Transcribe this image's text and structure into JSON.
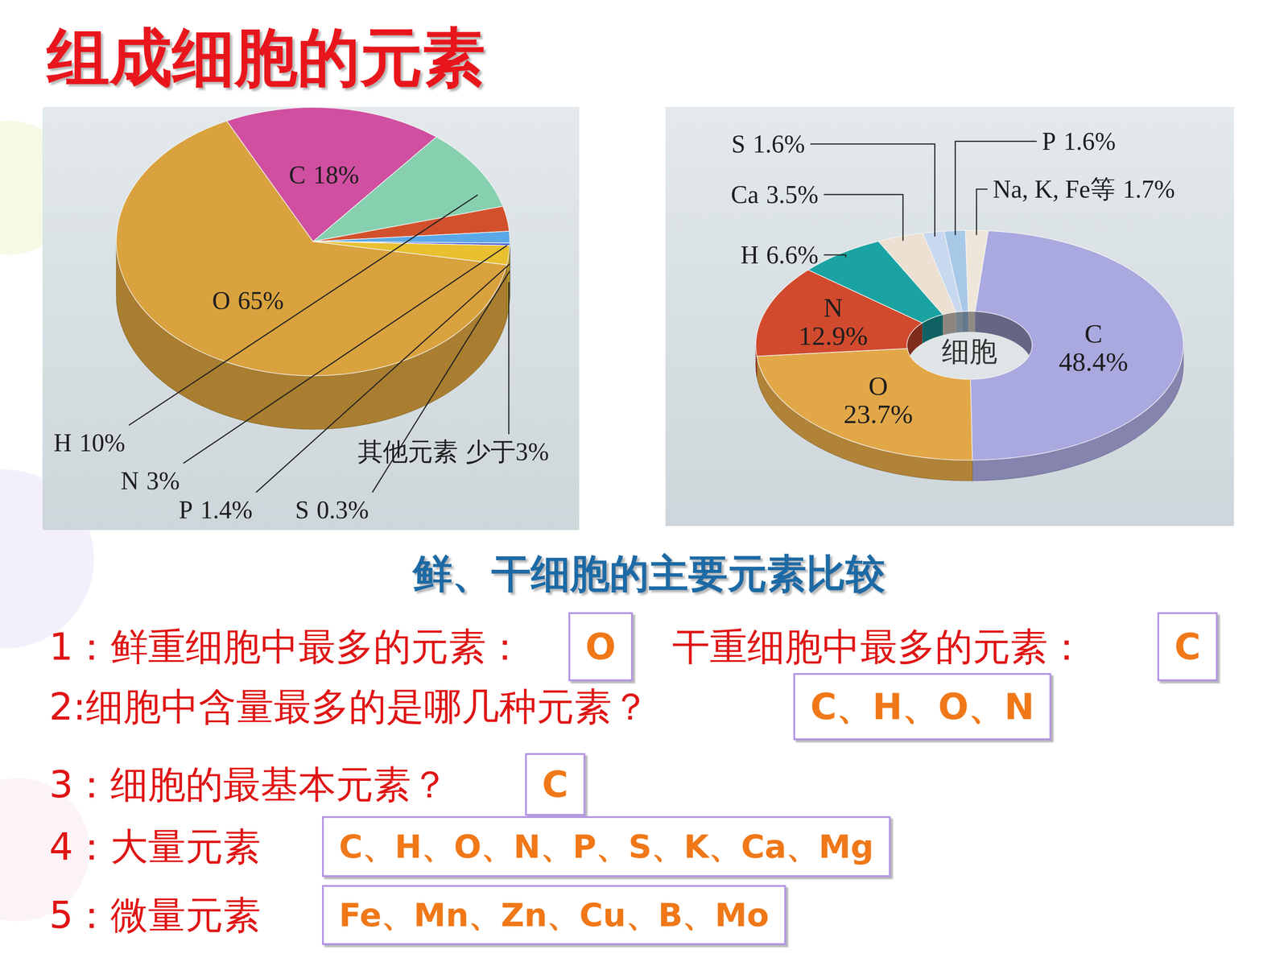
{
  "slide": {
    "title": "组成细胞的元素",
    "subtitle": "鲜、干细胞的主要元素比较",
    "rows": [
      [
        {
          "prompt": "1：鲜重细胞中最多的元素：",
          "answer": "O"
        },
        {
          "prompt": "干重细胞中最多的元素：",
          "answer": "C"
        }
      ],
      [
        {
          "prompt": "2:细胞中含量最多的是哪几种元素？",
          "answer": "C、H、O、N"
        }
      ],
      [
        {
          "prompt": "3：细胞的最基本元素？",
          "answer": "C"
        }
      ],
      [
        {
          "prompt": "4：大量元素",
          "answer": "C、H、O、N、P、S、K、Ca、Mg"
        }
      ],
      [
        {
          "prompt": "5：微量元素",
          "answer": "Fe、Mn、Zn、Cu、B、Mo"
        }
      ]
    ]
  },
  "chart_data": [
    {
      "type": "pie",
      "categories": [
        "O",
        "C",
        "H",
        "N",
        "P",
        "S",
        "其他元素"
      ],
      "values": [
        65,
        18,
        10,
        3,
        1.4,
        0.3,
        2.3
      ],
      "value_labels": [
        "65%",
        "18%",
        "10%",
        "3%",
        "1.4%",
        "0.3%",
        "少于3%"
      ],
      "colors": [
        "#d9a23e",
        "#d04fa0",
        "#86d0b0",
        "#d2512c",
        "#5aa8e8",
        "#4f62d8",
        "#e8c030"
      ],
      "data_labels": true
    },
    {
      "type": "donut",
      "categories": [
        "C",
        "O",
        "N",
        "H",
        "Ca",
        "S",
        "P",
        "Na, K, Fe等"
      ],
      "values": [
        48.4,
        23.7,
        12.9,
        6.6,
        3.5,
        1.6,
        1.6,
        1.7
      ],
      "value_labels": [
        "48.4%",
        "23.7%",
        "12.9%",
        "6.6%",
        "3.5%",
        "1.6%",
        "1.6%",
        "1.7%"
      ],
      "colors": [
        "#a9a9e0",
        "#e2a848",
        "#d24a2e",
        "#1ba3a3",
        "#ece0d2",
        "#c8d8ee",
        "#a8c8e8",
        "#efe6da"
      ],
      "data_labels": true,
      "annotations": [
        "细胞"
      ]
    }
  ]
}
